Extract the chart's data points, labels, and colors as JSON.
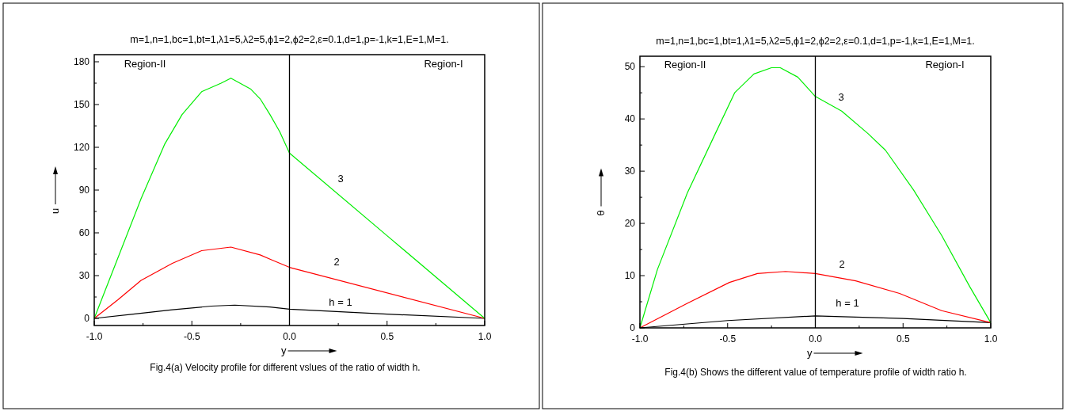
{
  "chart_data": [
    {
      "type": "line",
      "title": "m=1,n=1,bc=1,bt=1,λ1=5,λ2=5,ϕ1=2,ϕ2=2,ε=0.1,d=1,p=-1,k=1,E=1,M=1.",
      "xlabel": "y",
      "ylabel": "u",
      "xlim": [
        -1,
        1
      ],
      "ylim": [
        -5,
        185
      ],
      "xticks": [
        {
          "value": -1,
          "label": "-1.0"
        },
        {
          "value": -0.75,
          "label": null
        },
        {
          "value": -0.5,
          "label": "-0.5"
        },
        {
          "value": -0.25,
          "label": null
        },
        {
          "value": 0,
          "label": "0.0"
        },
        {
          "value": 0.25,
          "label": null
        },
        {
          "value": 0.5,
          "label": "0.5"
        },
        {
          "value": 0.75,
          "label": null
        },
        {
          "value": 1,
          "label": "1.0"
        }
      ],
      "yticks": [
        0,
        {
          "value": 15,
          "label": null
        },
        30,
        {
          "value": 45,
          "label": null
        },
        60,
        {
          "value": 75,
          "label": null
        },
        90,
        {
          "value": 105,
          "label": null
        },
        120,
        {
          "value": 135,
          "label": null
        },
        150,
        {
          "value": 165,
          "label": null
        },
        180
      ],
      "series": [
        {
          "name": "h = 1",
          "color": "#000000",
          "x": [
            -1,
            -0.8,
            -0.6,
            -0.4,
            -0.28,
            -0.1,
            0,
            0.5,
            1
          ],
          "values": [
            0,
            3,
            6,
            8.6,
            9.3,
            8,
            6.5,
            3,
            0
          ]
        },
        {
          "name": "2",
          "color": "#ff0000",
          "x": [
            -1,
            -0.88,
            -0.76,
            -0.6,
            -0.45,
            -0.3,
            -0.15,
            -0.09,
            0,
            1
          ],
          "values": [
            0,
            12.9,
            26.7,
            38.6,
            47.5,
            50,
            44.5,
            41,
            35.8,
            0
          ]
        },
        {
          "name": "3",
          "color": "#00ee00",
          "x": [
            -1,
            -0.9,
            -0.76,
            -0.64,
            -0.55,
            -0.45,
            -0.35,
            -0.3,
            -0.2,
            -0.15,
            -0.1,
            -0.05,
            0,
            0.5,
            1
          ],
          "values": [
            0,
            35,
            84,
            122,
            143,
            159,
            165,
            168.5,
            161,
            154,
            143,
            131,
            116,
            58,
            0
          ]
        }
      ],
      "ref_lines": [
        {
          "axis": "x",
          "value": 0,
          "color": "#000000"
        }
      ],
      "annotations": [
        "Region-II",
        "Region-I",
        "Fig.4(a) Velocity profile for different vslues of the ratio of width h."
      ]
    },
    {
      "type": "line",
      "title": "m=1,n=1,bc=1,bt=1,λ1=5,λ2=5,ϕ1=2,ϕ2=2,ε=0.1,d=1,p=-1,k=1,E=1,M=1.",
      "xlabel": "y",
      "ylabel": "θ",
      "xlim": [
        -1,
        1
      ],
      "ylim": [
        0,
        52
      ],
      "xticks": [
        {
          "value": -1,
          "label": "-1.0"
        },
        {
          "value": -0.75,
          "label": null
        },
        {
          "value": -0.5,
          "label": "-0.5"
        },
        {
          "value": -0.25,
          "label": null
        },
        {
          "value": 0,
          "label": "0.0"
        },
        {
          "value": 0.25,
          "label": null
        },
        {
          "value": 0.5,
          "label": "0.5"
        },
        {
          "value": 0.75,
          "label": null
        },
        {
          "value": 1,
          "label": "1.0"
        }
      ],
      "yticks": [
        0,
        {
          "value": 5,
          "label": null
        },
        10,
        {
          "value": 15,
          "label": null
        },
        20,
        {
          "value": 25,
          "label": null
        },
        30,
        {
          "value": 35,
          "label": null
        },
        40,
        {
          "value": 45,
          "label": null
        },
        50
      ],
      "series": [
        {
          "name": "h = 1",
          "color": "#000000",
          "x": [
            -1,
            -0.5,
            0,
            0.5,
            1
          ],
          "values": [
            0,
            1.4,
            2.3,
            1.8,
            1
          ]
        },
        {
          "name": "2",
          "color": "#ff0000",
          "x": [
            -1,
            -0.73,
            -0.49,
            -0.33,
            -0.17,
            0,
            0.23,
            0.48,
            0.72,
            1
          ],
          "values": [
            0,
            4.7,
            8.7,
            10.4,
            10.8,
            10.4,
            9,
            6.6,
            3.3,
            1
          ]
        },
        {
          "name": "3",
          "color": "#00ee00",
          "x": [
            -1,
            -0.9,
            -0.73,
            -0.57,
            -0.46,
            -0.35,
            -0.25,
            -0.2,
            -0.1,
            0,
            0.15,
            0.3,
            0.4,
            0.56,
            0.72,
            0.88,
            1
          ],
          "values": [
            0,
            11.2,
            25.8,
            37.2,
            45,
            48.6,
            49.8,
            49.8,
            48,
            44.3,
            41.5,
            37.2,
            34,
            26.4,
            17.7,
            7.9,
            1
          ]
        }
      ],
      "ref_lines": [
        {
          "axis": "x",
          "value": 0,
          "color": "#000000"
        }
      ],
      "annotations": [
        "Region-II",
        "Region-I",
        "Fig.4(b) Shows the different value of temperature profile of width ratio h."
      ]
    }
  ]
}
